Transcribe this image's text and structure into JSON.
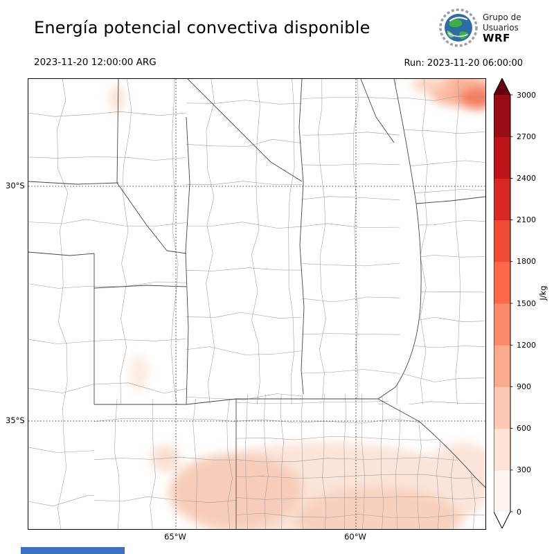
{
  "header": {
    "title": "Energía potencial convectiva disponible",
    "logo": {
      "line1": "Grupo de",
      "line2": "Usuarios",
      "line3": "WRF"
    },
    "valid_time": "2023-11-20 12:00:00 ARG",
    "run_label": "Run: 2023-11-20 06:00:00"
  },
  "map": {
    "lat_labels": [
      "30°S",
      "35°S"
    ],
    "lon_labels": [
      "65°W",
      "60°W"
    ]
  },
  "colorbar": {
    "unit": "J/kg",
    "tick_labels_top_to_bottom": [
      "3000",
      "2700",
      "2400",
      "2100",
      "1800",
      "1500",
      "1200",
      "900",
      "600",
      "300",
      "0"
    ],
    "over_color": "#67000d",
    "under_color": "#ffffff",
    "segment_colors_bottom_to_top": [
      "#fff5f0",
      "#fee3d6",
      "#fdc9b4",
      "#fcaa8e",
      "#fc8a6b",
      "#fb694a",
      "#f04b34",
      "#d92723",
      "#bb151a",
      "#980c13"
    ]
  }
}
